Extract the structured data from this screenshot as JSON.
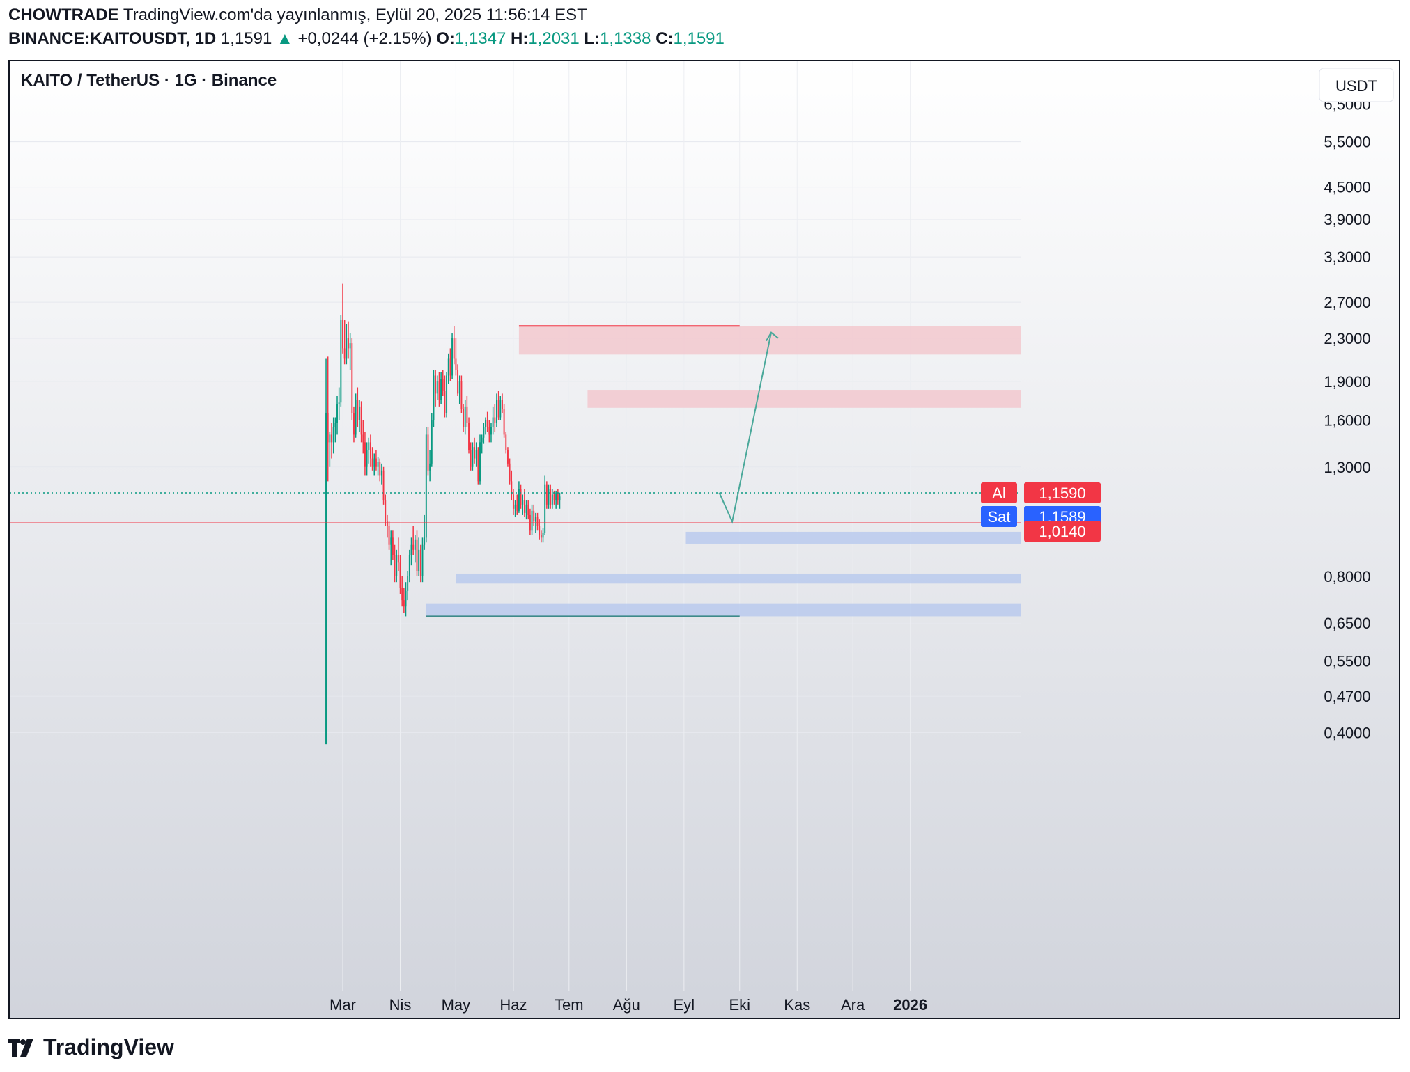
{
  "header": {
    "author": "CHOWTRADE",
    "published": "TradingView.com'da yayınlanmış, Eylül 20, 2025 11:56:14 EST",
    "symbol": "BINANCE:KAITOUSDT, 1D",
    "last": "1,1591",
    "change": "+0,0244 (+2.15%)",
    "o_label": "O:",
    "o": "1,1347",
    "h_label": "H:",
    "h": "1,2031",
    "l_label": "L:",
    "l": "1,1338",
    "c_label": "C:",
    "c": "1,1591"
  },
  "chart_title": "KAITO / TetherUS · 1G · Binance",
  "currency": "USDT",
  "brand": "TradingView",
  "colors": {
    "up": "#089981",
    "down": "#f23645",
    "ask_red": "#f23645",
    "bid_blue": "#2962ff",
    "resistance_zone": "#f3c6cc",
    "support_zone": "#b7c8ee",
    "projection": "#4aa89a"
  },
  "chart_data": {
    "type": "candlestick",
    "scale": "log",
    "y_ticks": [
      "6,5000",
      "5,5000",
      "4,5000",
      "3,9000",
      "3,3000",
      "2,7000",
      "2,3000",
      "1,9000",
      "1,6000",
      "1,3000",
      "0,8000",
      "0,6500",
      "0,5500",
      "0,4700",
      "0,4000"
    ],
    "x_ticks": [
      "Mar",
      "Nis",
      "May",
      "Haz",
      "Tem",
      "Ağu",
      "Eyl",
      "Eki",
      "Kas",
      "Ara",
      "2026"
    ],
    "price_labels": [
      {
        "tag": "Al",
        "value": "1,1590",
        "color": "red"
      },
      {
        "tag": "Sat",
        "value": "1,1589",
        "color": "blue"
      },
      {
        "tag": "",
        "value": "1,0140",
        "color": "red"
      }
    ],
    "horizontal_line": 1.014,
    "last_price": 1.159,
    "zones": [
      {
        "kind": "resistance",
        "from_date": "2025-06-04",
        "low": 2.14,
        "high": 2.43
      },
      {
        "kind": "resistance",
        "from_date": "2025-07-11",
        "low": 1.69,
        "high": 1.83
      },
      {
        "kind": "support",
        "from_date": "2025-09-02",
        "low": 0.925,
        "high": 0.975
      },
      {
        "kind": "support",
        "from_date": "2025-05-01",
        "low": 0.775,
        "high": 0.81
      },
      {
        "kind": "support",
        "from_date": "2025-04-15",
        "low": 0.67,
        "high": 0.71
      }
    ],
    "level_lines": [
      {
        "kind": "resistance",
        "from_date": "2025-06-04",
        "to_date": "2025-10-01",
        "value": 2.43
      },
      {
        "kind": "support",
        "from_date": "2025-04-15",
        "to_date": "2025-10-01",
        "value": 0.67
      }
    ],
    "projection": [
      {
        "date": "2025-09-20",
        "value": 1.16
      },
      {
        "date": "2025-09-27",
        "value": 1.02
      },
      {
        "date": "2025-10-18",
        "value": 2.36
      }
    ],
    "candles": [
      {
        "date": "2025-02-20",
        "open": 0.38,
        "high": 2.1,
        "low": 0.38,
        "close": 1.65
      },
      {
        "date": "2025-02-21",
        "open": 1.65,
        "high": 2.12,
        "low": 1.22,
        "close": 1.45
      },
      {
        "date": "2025-02-22",
        "open": 1.45,
        "high": 1.52,
        "low": 1.3,
        "close": 1.5
      },
      {
        "date": "2025-02-23",
        "open": 1.5,
        "high": 1.58,
        "low": 1.35,
        "close": 1.45
      },
      {
        "date": "2025-02-24",
        "open": 1.45,
        "high": 1.62,
        "low": 1.38,
        "close": 1.55
      },
      {
        "date": "2025-02-25",
        "open": 1.55,
        "high": 1.62,
        "low": 1.45,
        "close": 1.58
      },
      {
        "date": "2025-02-26",
        "open": 1.58,
        "high": 1.78,
        "low": 1.5,
        "close": 1.72
      },
      {
        "date": "2025-02-27",
        "open": 1.72,
        "high": 1.85,
        "low": 1.6,
        "close": 1.73
      },
      {
        "date": "2025-02-28",
        "open": 1.73,
        "high": 2.55,
        "low": 1.7,
        "close": 2.5
      },
      {
        "date": "2025-03-01",
        "open": 2.5,
        "high": 2.93,
        "low": 2.15,
        "close": 2.2
      },
      {
        "date": "2025-03-02",
        "open": 2.2,
        "high": 2.5,
        "low": 2.05,
        "close": 2.1
      },
      {
        "date": "2025-03-03",
        "open": 2.1,
        "high": 2.45,
        "low": 2.05,
        "close": 2.3
      },
      {
        "date": "2025-03-04",
        "open": 2.3,
        "high": 2.48,
        "low": 2.1,
        "close": 2.2
      },
      {
        "date": "2025-03-05",
        "open": 2.2,
        "high": 2.35,
        "low": 2.0,
        "close": 2.25
      },
      {
        "date": "2025-03-06",
        "open": 2.25,
        "high": 2.3,
        "low": 1.6,
        "close": 1.65
      },
      {
        "date": "2025-03-07",
        "open": 1.65,
        "high": 1.7,
        "low": 1.45,
        "close": 1.5
      },
      {
        "date": "2025-03-08",
        "open": 1.5,
        "high": 1.8,
        "low": 1.48,
        "close": 1.75
      },
      {
        "date": "2025-03-09",
        "open": 1.75,
        "high": 1.85,
        "low": 1.55,
        "close": 1.6
      },
      {
        "date": "2025-03-10",
        "open": 1.6,
        "high": 1.75,
        "low": 1.52,
        "close": 1.7
      },
      {
        "date": "2025-03-11",
        "open": 1.7,
        "high": 1.74,
        "low": 1.45,
        "close": 1.5
      },
      {
        "date": "2025-03-12",
        "open": 1.5,
        "high": 1.6,
        "low": 1.38,
        "close": 1.45
      },
      {
        "date": "2025-03-13",
        "open": 1.45,
        "high": 1.52,
        "low": 1.25,
        "close": 1.3
      },
      {
        "date": "2025-03-14",
        "open": 1.3,
        "high": 1.45,
        "low": 1.25,
        "close": 1.4
      },
      {
        "date": "2025-03-15",
        "open": 1.4,
        "high": 1.48,
        "low": 1.32,
        "close": 1.45
      },
      {
        "date": "2025-03-16",
        "open": 1.45,
        "high": 1.5,
        "low": 1.3,
        "close": 1.35
      },
      {
        "date": "2025-03-17",
        "open": 1.35,
        "high": 1.42,
        "low": 1.28,
        "close": 1.3
      },
      {
        "date": "2025-03-18",
        "open": 1.3,
        "high": 1.38,
        "low": 1.25,
        "close": 1.35
      },
      {
        "date": "2025-03-19",
        "open": 1.35,
        "high": 1.4,
        "low": 1.28,
        "close": 1.3
      },
      {
        "date": "2025-03-20",
        "open": 1.3,
        "high": 1.36,
        "low": 1.25,
        "close": 1.33
      },
      {
        "date": "2025-03-21",
        "open": 1.33,
        "high": 1.35,
        "low": 1.22,
        "close": 1.25
      },
      {
        "date": "2025-03-22",
        "open": 1.25,
        "high": 1.32,
        "low": 1.2,
        "close": 1.28
      },
      {
        "date": "2025-03-23",
        "open": 1.28,
        "high": 1.3,
        "low": 1.1,
        "close": 1.12
      },
      {
        "date": "2025-03-24",
        "open": 1.12,
        "high": 1.15,
        "low": 1.0,
        "close": 1.02
      },
      {
        "date": "2025-03-25",
        "open": 1.02,
        "high": 1.05,
        "low": 0.95,
        "close": 1.0
      },
      {
        "date": "2025-03-26",
        "open": 1.0,
        "high": 1.02,
        "low": 0.9,
        "close": 0.92
      },
      {
        "date": "2025-03-27",
        "open": 0.92,
        "high": 0.98,
        "low": 0.84,
        "close": 0.95
      },
      {
        "date": "2025-03-28",
        "open": 0.95,
        "high": 0.98,
        "low": 0.86,
        "close": 0.88
      },
      {
        "date": "2025-03-29",
        "open": 0.88,
        "high": 0.92,
        "low": 0.78,
        "close": 0.8
      },
      {
        "date": "2025-03-30",
        "open": 0.8,
        "high": 0.9,
        "low": 0.78,
        "close": 0.88
      },
      {
        "date": "2025-03-31",
        "open": 0.88,
        "high": 0.95,
        "low": 0.82,
        "close": 0.85
      },
      {
        "date": "2025-04-01",
        "open": 0.85,
        "high": 0.88,
        "low": 0.74,
        "close": 0.76
      },
      {
        "date": "2025-04-02",
        "open": 0.76,
        "high": 0.8,
        "low": 0.7,
        "close": 0.72
      },
      {
        "date": "2025-04-03",
        "open": 0.72,
        "high": 0.76,
        "low": 0.68,
        "close": 0.7
      },
      {
        "date": "2025-04-04",
        "open": 0.7,
        "high": 0.78,
        "low": 0.67,
        "close": 0.75
      },
      {
        "date": "2025-04-05",
        "open": 0.75,
        "high": 0.82,
        "low": 0.72,
        "close": 0.8
      },
      {
        "date": "2025-04-06",
        "open": 0.8,
        "high": 0.9,
        "low": 0.78,
        "close": 0.88
      },
      {
        "date": "2025-04-07",
        "open": 0.88,
        "high": 0.95,
        "low": 0.84,
        "close": 0.92
      },
      {
        "date": "2025-04-08",
        "open": 0.92,
        "high": 1.0,
        "low": 0.88,
        "close": 0.9
      },
      {
        "date": "2025-04-09",
        "open": 0.9,
        "high": 0.96,
        "low": 0.85,
        "close": 0.94
      },
      {
        "date": "2025-04-10",
        "open": 0.94,
        "high": 0.98,
        "low": 0.8,
        "close": 0.82
      },
      {
        "date": "2025-04-11",
        "open": 0.82,
        "high": 0.95,
        "low": 0.8,
        "close": 0.9
      },
      {
        "date": "2025-04-12",
        "open": 0.9,
        "high": 0.92,
        "low": 0.78,
        "close": 0.8
      },
      {
        "date": "2025-04-13",
        "open": 0.8,
        "high": 0.95,
        "low": 0.78,
        "close": 0.92
      },
      {
        "date": "2025-04-14",
        "open": 0.92,
        "high": 1.05,
        "low": 0.9,
        "close": 0.95
      },
      {
        "date": "2025-04-15",
        "open": 0.95,
        "high": 1.55,
        "low": 0.93,
        "close": 1.5
      },
      {
        "date": "2025-04-16",
        "open": 1.5,
        "high": 1.55,
        "low": 1.25,
        "close": 1.28
      },
      {
        "date": "2025-04-17",
        "open": 1.28,
        "high": 1.4,
        "low": 1.22,
        "close": 1.32
      },
      {
        "date": "2025-04-18",
        "open": 1.32,
        "high": 1.65,
        "low": 1.3,
        "close": 1.6
      },
      {
        "date": "2025-04-19",
        "open": 1.6,
        "high": 2.0,
        "low": 1.55,
        "close": 1.95
      },
      {
        "date": "2025-04-20",
        "open": 1.95,
        "high": 2.0,
        "low": 1.7,
        "close": 1.8
      },
      {
        "date": "2025-04-21",
        "open": 1.8,
        "high": 1.95,
        "low": 1.75,
        "close": 1.9
      },
      {
        "date": "2025-04-22",
        "open": 1.9,
        "high": 1.98,
        "low": 1.7,
        "close": 1.75
      },
      {
        "date": "2025-04-23",
        "open": 1.75,
        "high": 1.98,
        "low": 1.72,
        "close": 1.92
      },
      {
        "date": "2025-04-24",
        "open": 1.92,
        "high": 2.0,
        "low": 1.78,
        "close": 1.82
      },
      {
        "date": "2025-04-25",
        "open": 1.82,
        "high": 1.95,
        "low": 1.62,
        "close": 1.65
      },
      {
        "date": "2025-04-26",
        "open": 1.65,
        "high": 1.98,
        "low": 1.62,
        "close": 1.95
      },
      {
        "date": "2025-04-27",
        "open": 1.95,
        "high": 2.15,
        "low": 1.88,
        "close": 2.1
      },
      {
        "date": "2025-04-28",
        "open": 2.1,
        "high": 2.2,
        "low": 1.9,
        "close": 1.95
      },
      {
        "date": "2025-04-29",
        "open": 1.95,
        "high": 2.35,
        "low": 1.92,
        "close": 2.3
      },
      {
        "date": "2025-04-30",
        "open": 2.3,
        "high": 2.43,
        "low": 2.05,
        "close": 2.1
      },
      {
        "date": "2025-05-01",
        "open": 2.1,
        "high": 2.3,
        "low": 1.95,
        "close": 2.0
      },
      {
        "date": "2025-05-02",
        "open": 2.0,
        "high": 2.05,
        "low": 1.78,
        "close": 1.8
      },
      {
        "date": "2025-05-03",
        "open": 1.8,
        "high": 1.95,
        "low": 1.72,
        "close": 1.9
      },
      {
        "date": "2025-05-04",
        "open": 1.9,
        "high": 1.95,
        "low": 1.65,
        "close": 1.68
      },
      {
        "date": "2025-05-05",
        "open": 1.68,
        "high": 1.72,
        "low": 1.52,
        "close": 1.55
      },
      {
        "date": "2025-05-06",
        "open": 1.55,
        "high": 1.75,
        "low": 1.5,
        "close": 1.7
      },
      {
        "date": "2025-05-07",
        "open": 1.7,
        "high": 1.78,
        "low": 1.55,
        "close": 1.58
      },
      {
        "date": "2025-05-08",
        "open": 1.58,
        "high": 1.62,
        "low": 1.38,
        "close": 1.4
      },
      {
        "date": "2025-05-09",
        "open": 1.4,
        "high": 1.45,
        "low": 1.28,
        "close": 1.3
      },
      {
        "date": "2025-05-10",
        "open": 1.3,
        "high": 1.45,
        "low": 1.28,
        "close": 1.42
      },
      {
        "date": "2025-05-11",
        "open": 1.42,
        "high": 1.48,
        "low": 1.32,
        "close": 1.35
      },
      {
        "date": "2025-05-12",
        "open": 1.35,
        "high": 1.45,
        "low": 1.3,
        "close": 1.4
      },
      {
        "date": "2025-05-13",
        "open": 1.4,
        "high": 1.42,
        "low": 1.2,
        "close": 1.22
      },
      {
        "date": "2025-05-14",
        "open": 1.22,
        "high": 1.5,
        "low": 1.2,
        "close": 1.45
      },
      {
        "date": "2025-05-15",
        "open": 1.45,
        "high": 1.5,
        "low": 1.38,
        "close": 1.48
      },
      {
        "date": "2025-05-16",
        "open": 1.48,
        "high": 1.58,
        "low": 1.44,
        "close": 1.55
      },
      {
        "date": "2025-05-17",
        "open": 1.55,
        "high": 1.62,
        "low": 1.5,
        "close": 1.6
      },
      {
        "date": "2025-05-18",
        "open": 1.6,
        "high": 1.66,
        "low": 1.52,
        "close": 1.55
      },
      {
        "date": "2025-05-19",
        "open": 1.55,
        "high": 1.6,
        "low": 1.45,
        "close": 1.5
      },
      {
        "date": "2025-05-20",
        "open": 1.5,
        "high": 1.58,
        "low": 1.45,
        "close": 1.55
      },
      {
        "date": "2025-05-21",
        "open": 1.55,
        "high": 1.7,
        "low": 1.5,
        "close": 1.62
      },
      {
        "date": "2025-05-22",
        "open": 1.62,
        "high": 1.72,
        "low": 1.52,
        "close": 1.58
      },
      {
        "date": "2025-05-23",
        "open": 1.58,
        "high": 1.8,
        "low": 1.55,
        "close": 1.75
      },
      {
        "date": "2025-05-24",
        "open": 1.75,
        "high": 1.82,
        "low": 1.6,
        "close": 1.62
      },
      {
        "date": "2025-05-25",
        "open": 1.62,
        "high": 1.78,
        "low": 1.6,
        "close": 1.75
      },
      {
        "date": "2025-05-26",
        "open": 1.75,
        "high": 1.8,
        "low": 1.65,
        "close": 1.68
      },
      {
        "date": "2025-05-27",
        "open": 1.68,
        "high": 1.72,
        "low": 1.48,
        "close": 1.5
      },
      {
        "date": "2025-05-28",
        "open": 1.5,
        "high": 1.52,
        "low": 1.38,
        "close": 1.4
      },
      {
        "date": "2025-05-29",
        "open": 1.4,
        "high": 1.42,
        "low": 1.3,
        "close": 1.32
      },
      {
        "date": "2025-05-30",
        "open": 1.32,
        "high": 1.35,
        "low": 1.2,
        "close": 1.22
      },
      {
        "date": "2025-05-31",
        "open": 1.22,
        "high": 1.28,
        "low": 1.12,
        "close": 1.15
      },
      {
        "date": "2025-06-01",
        "open": 1.15,
        "high": 1.18,
        "low": 1.05,
        "close": 1.08
      },
      {
        "date": "2025-06-02",
        "open": 1.08,
        "high": 1.12,
        "low": 1.04,
        "close": 1.1
      },
      {
        "date": "2025-06-03",
        "open": 1.1,
        "high": 1.15,
        "low": 1.05,
        "close": 1.07
      },
      {
        "date": "2025-06-04",
        "open": 1.07,
        "high": 1.22,
        "low": 1.06,
        "close": 1.18
      },
      {
        "date": "2025-06-05",
        "open": 1.18,
        "high": 1.2,
        "low": 1.08,
        "close": 1.1
      },
      {
        "date": "2025-06-06",
        "open": 1.1,
        "high": 1.15,
        "low": 1.05,
        "close": 1.12
      },
      {
        "date": "2025-06-07",
        "open": 1.12,
        "high": 1.18,
        "low": 1.04,
        "close": 1.06
      },
      {
        "date": "2025-06-08",
        "open": 1.06,
        "high": 1.12,
        "low": 1.03,
        "close": 1.1
      },
      {
        "date": "2025-06-09",
        "open": 1.1,
        "high": 1.12,
        "low": 1.03,
        "close": 1.05
      },
      {
        "date": "2025-06-10",
        "open": 1.05,
        "high": 1.08,
        "low": 0.96,
        "close": 0.98
      },
      {
        "date": "2025-06-11",
        "open": 0.98,
        "high": 1.1,
        "low": 0.96,
        "close": 1.07
      },
      {
        "date": "2025-06-12",
        "open": 1.07,
        "high": 1.1,
        "low": 1.0,
        "close": 1.02
      },
      {
        "date": "2025-06-13",
        "open": 1.02,
        "high": 1.06,
        "low": 0.97,
        "close": 1.04
      },
      {
        "date": "2025-06-14",
        "open": 1.04,
        "high": 1.06,
        "low": 0.98,
        "close": 1.0
      },
      {
        "date": "2025-06-15",
        "open": 1.0,
        "high": 1.03,
        "low": 0.94,
        "close": 0.96
      },
      {
        "date": "2025-06-16",
        "open": 0.96,
        "high": 0.98,
        "low": 0.93,
        "close": 0.95
      },
      {
        "date": "2025-06-17",
        "open": 0.95,
        "high": 0.99,
        "low": 0.93,
        "close": 0.97
      },
      {
        "date": "2025-06-18",
        "open": 0.97,
        "high": 1.25,
        "low": 0.96,
        "close": 1.2
      },
      {
        "date": "2025-06-19",
        "open": 1.2,
        "high": 1.22,
        "low": 1.08,
        "close": 1.1
      },
      {
        "date": "2025-06-20",
        "open": 1.1,
        "high": 1.2,
        "low": 1.08,
        "close": 1.18
      },
      {
        "date": "2025-06-21",
        "open": 1.18,
        "high": 1.2,
        "low": 1.08,
        "close": 1.1
      },
      {
        "date": "2025-06-22",
        "open": 1.1,
        "high": 1.18,
        "low": 1.08,
        "close": 1.15
      },
      {
        "date": "2025-06-23",
        "open": 1.15,
        "high": 1.17,
        "low": 1.1,
        "close": 1.12
      },
      {
        "date": "2025-06-24",
        "open": 1.12,
        "high": 1.17,
        "low": 1.08,
        "close": 1.16
      },
      {
        "date": "2025-06-25",
        "open": 1.16,
        "high": 1.18,
        "low": 1.1,
        "close": 1.12
      },
      {
        "date": "2025-06-26",
        "open": 1.12,
        "high": 1.16,
        "low": 1.08,
        "close": 1.14
      }
    ]
  }
}
